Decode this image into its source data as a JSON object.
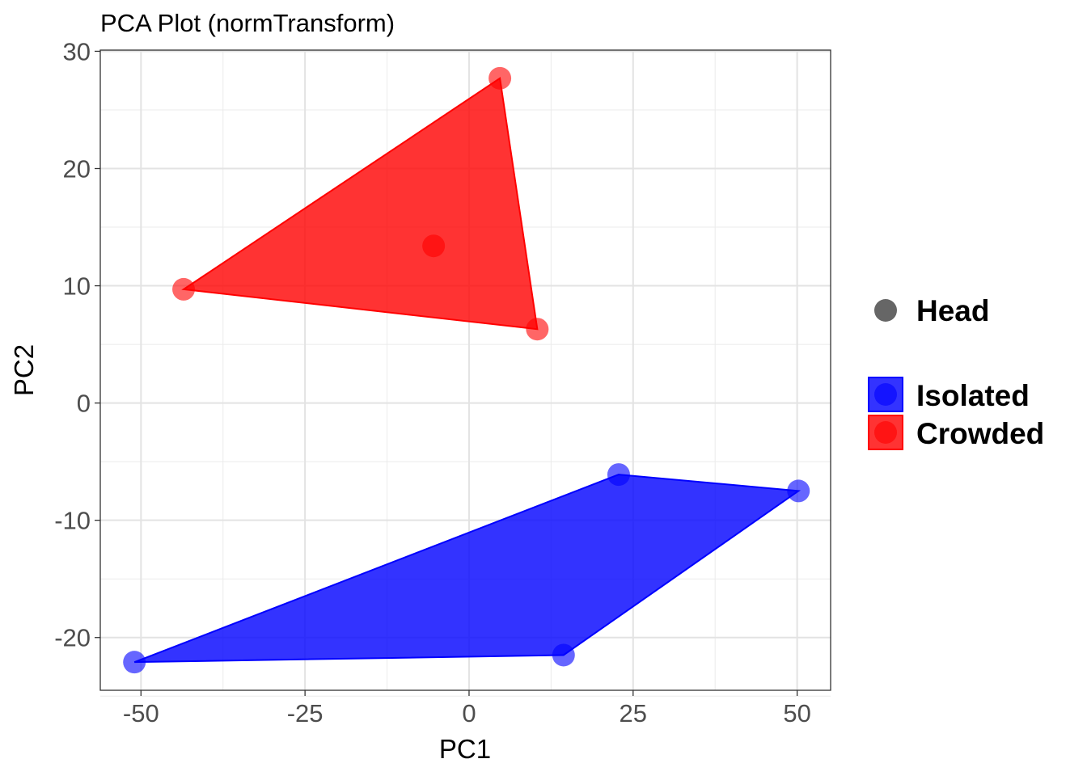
{
  "chart_data": {
    "type": "scatter",
    "title": "PCA Plot (normTransform)",
    "xlabel": "PC1",
    "ylabel": "PC2",
    "xlim": [
      -56.2,
      55.1
    ],
    "ylim": [
      -24.5,
      30.1
    ],
    "x_ticks": [
      -50,
      -25,
      0,
      25,
      50
    ],
    "y_ticks": [
      -20,
      -10,
      0,
      10,
      20,
      30
    ],
    "x_tick_labels": [
      "-50",
      "-25",
      "0",
      "25",
      "50"
    ],
    "y_tick_labels": [
      "-20",
      "-10",
      "0",
      "10",
      "20",
      "30"
    ],
    "grid": true,
    "legend_position": "right",
    "shape_legend": {
      "label": "Head",
      "color": "#666666"
    },
    "series": [
      {
        "name": "Isolated",
        "color": "#0000ff",
        "points": [
          [
            22.8,
            -6.1
          ],
          [
            50.2,
            -7.5
          ],
          [
            -51.0,
            -22.1
          ],
          [
            14.4,
            -21.5
          ]
        ]
      },
      {
        "name": "Crowded",
        "color": "#ff0000",
        "points": [
          [
            4.7,
            27.7
          ],
          [
            -43.5,
            9.7
          ],
          [
            10.4,
            6.3
          ],
          [
            -5.4,
            13.4
          ]
        ]
      }
    ]
  }
}
